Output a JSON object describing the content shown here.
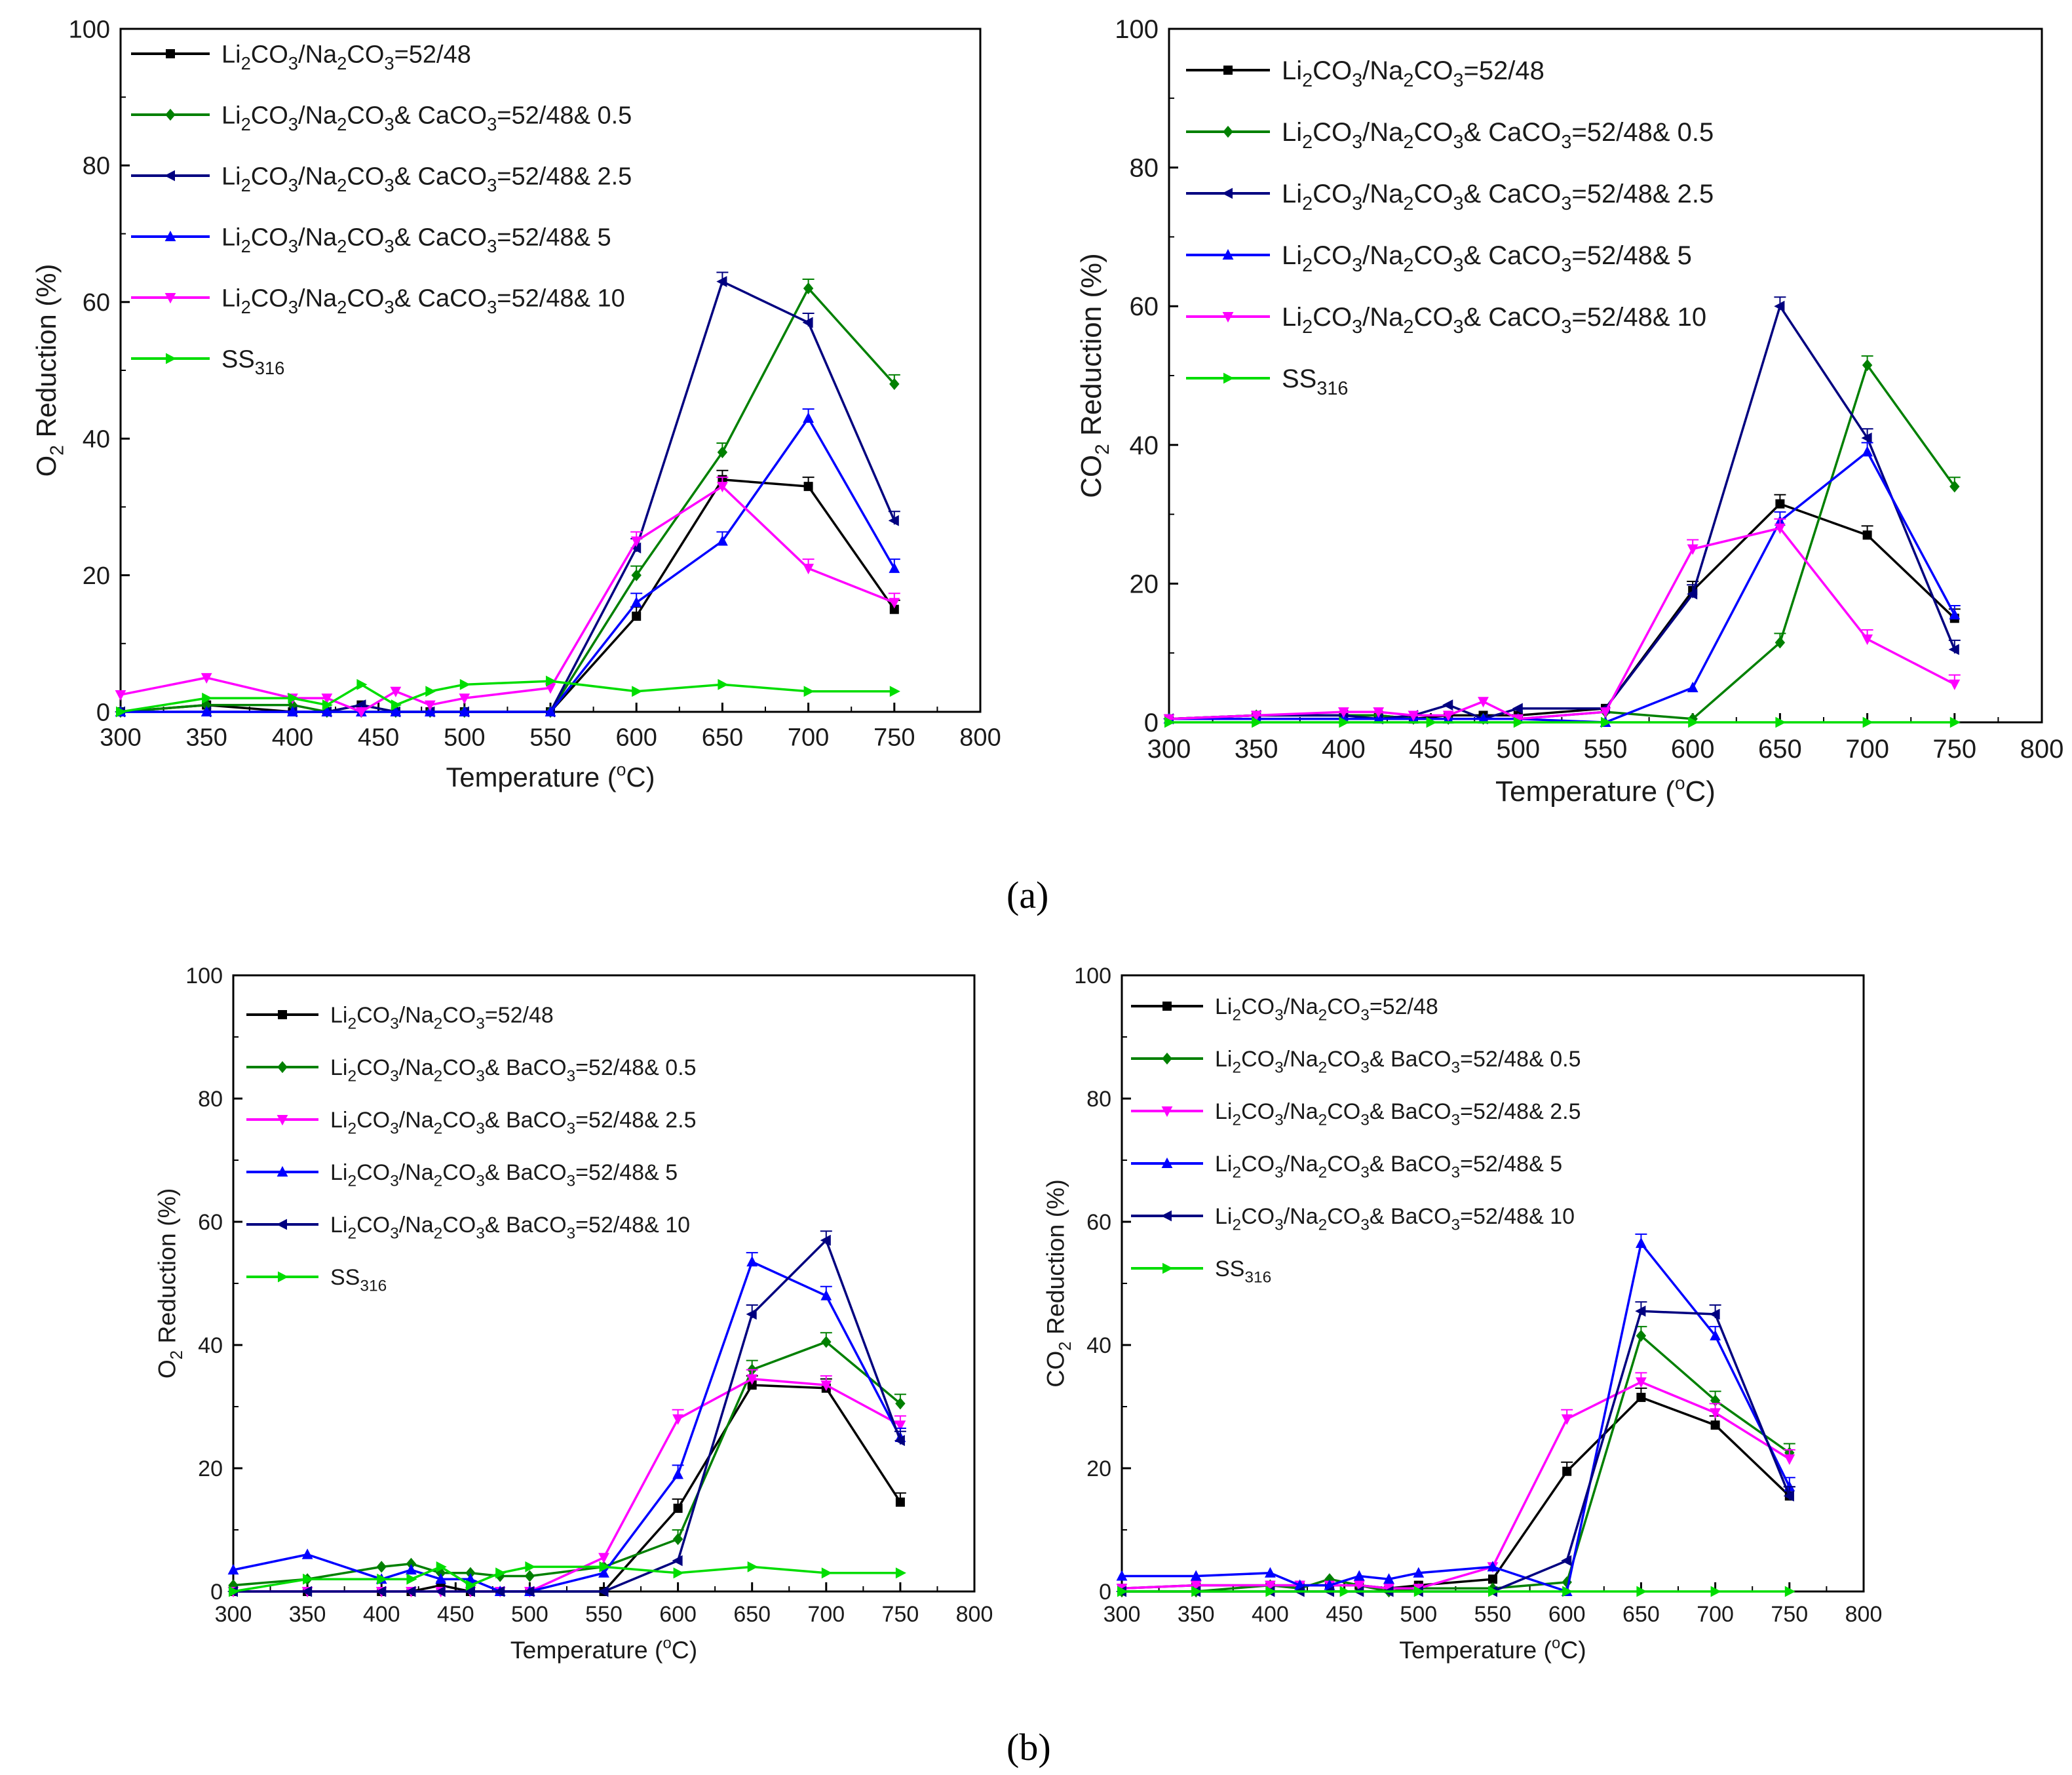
{
  "labels": {
    "panel_a": "(a)",
    "panel_b": "(b)"
  },
  "chart_data": [
    {
      "id": "a_left",
      "type": "line",
      "ylabel": "O2 Reduction (%)",
      "xlabel": "Temperature (°C)",
      "xlim": [
        300,
        800
      ],
      "ylim": [
        0,
        100
      ],
      "xticks": [
        300,
        350,
        400,
        450,
        500,
        550,
        600,
        650,
        700,
        750,
        800
      ],
      "yticks": [
        0,
        20,
        40,
        60,
        80,
        100
      ],
      "series": [
        {
          "name": "Li2CO3/Na2CO3=52/48",
          "color": "#000000",
          "marker": "square",
          "x": [
            300,
            350,
            400,
            420,
            440,
            460,
            480,
            500,
            550,
            600,
            650,
            700,
            750
          ],
          "y": [
            0,
            1,
            0,
            0,
            1,
            0,
            0,
            0,
            0,
            14,
            34,
            33,
            15
          ]
        },
        {
          "name": "Li2CO3/Na2CO3& CaCO3=52/48& 0.5",
          "color": "#008000",
          "marker": "diamond",
          "x": [
            300,
            350,
            400,
            420,
            440,
            460,
            480,
            500,
            550,
            600,
            650,
            700,
            750
          ],
          "y": [
            0,
            1,
            1,
            0,
            0,
            0,
            0,
            0,
            0,
            20,
            38,
            62,
            48
          ]
        },
        {
          "name": "Li2CO3/Na2CO3& CaCO3=52/48& 2.5",
          "color": "#000080",
          "marker": "left-triangle",
          "x": [
            300,
            350,
            400,
            420,
            440,
            460,
            480,
            500,
            550,
            600,
            650,
            700,
            750
          ],
          "y": [
            0,
            0,
            0,
            0,
            1,
            0,
            0,
            0,
            0,
            24,
            63,
            57,
            28
          ]
        },
        {
          "name": "Li2CO3/Na2CO3& CaCO3=52/48& 5",
          "color": "#0000ff",
          "marker": "up-triangle",
          "x": [
            300,
            350,
            400,
            420,
            440,
            460,
            480,
            500,
            550,
            600,
            650,
            700,
            750
          ],
          "y": [
            0,
            0,
            0,
            0,
            0,
            0,
            0,
            0,
            0,
            16,
            25,
            43,
            21
          ]
        },
        {
          "name": "Li2CO3/Na2CO3& CaCO3=52/48& 10",
          "color": "#ff00ff",
          "marker": "down-triangle",
          "x": [
            300,
            350,
            400,
            420,
            440,
            460,
            480,
            500,
            550,
            600,
            650,
            700,
            750
          ],
          "y": [
            2.5,
            5,
            2,
            2,
            0,
            3,
            1,
            2,
            3.5,
            25,
            33,
            21,
            16
          ]
        },
        {
          "name": "SS316",
          "color": "#00dd00",
          "marker": "right-triangle",
          "x": [
            300,
            350,
            400,
            420,
            440,
            460,
            480,
            500,
            550,
            600,
            650,
            700,
            750
          ],
          "y": [
            0,
            2,
            2,
            1,
            4,
            1,
            3,
            4,
            4.5,
            3,
            4,
            3,
            3
          ]
        }
      ]
    },
    {
      "id": "a_right",
      "type": "line",
      "ylabel": "CO2 Reduction (%)",
      "xlabel": "Temperature (°C)",
      "xlim": [
        300,
        800
      ],
      "ylim": [
        0,
        100
      ],
      "xticks": [
        300,
        350,
        400,
        450,
        500,
        550,
        600,
        650,
        700,
        750,
        800
      ],
      "yticks": [
        0,
        20,
        40,
        60,
        80,
        100
      ],
      "series": [
        {
          "name": "Li2CO3/Na2CO3=52/48",
          "color": "#000000",
          "marker": "square",
          "x": [
            300,
            350,
            400,
            420,
            440,
            460,
            480,
            500,
            550,
            600,
            650,
            700,
            750
          ],
          "y": [
            0.5,
            1,
            1,
            1,
            0.5,
            1,
            1,
            1,
            2,
            19,
            31.5,
            27,
            15
          ]
        },
        {
          "name": "Li2CO3/Na2CO3& CaCO3=52/48& 0.5",
          "color": "#008000",
          "marker": "diamond",
          "x": [
            300,
            350,
            400,
            420,
            440,
            460,
            480,
            500,
            550,
            600,
            650,
            700,
            750
          ],
          "y": [
            0.5,
            1,
            1,
            1,
            0.5,
            0.5,
            0.5,
            0.5,
            1.5,
            0.5,
            11.5,
            51.5,
            34
          ]
        },
        {
          "name": "Li2CO3/Na2CO3& CaCO3=52/48& 2.5",
          "color": "#000080",
          "marker": "left-triangle",
          "x": [
            300,
            350,
            400,
            420,
            440,
            460,
            480,
            500,
            550,
            600,
            650,
            700,
            750
          ],
          "y": [
            0.5,
            1,
            1,
            0.5,
            1,
            2.5,
            0.5,
            2,
            2,
            18.5,
            60,
            41,
            10.5
          ]
        },
        {
          "name": "Li2CO3/Na2CO3& CaCO3=52/48& 5",
          "color": "#0000ff",
          "marker": "up-triangle",
          "x": [
            300,
            350,
            400,
            420,
            440,
            460,
            480,
            500,
            550,
            600,
            650,
            700,
            750
          ],
          "y": [
            0.5,
            0.5,
            0.5,
            0.5,
            0.5,
            0.5,
            0.5,
            0.5,
            0,
            5,
            29,
            39,
            15.5
          ]
        },
        {
          "name": "Li2CO3/Na2CO3& CaCO3=52/48& 10",
          "color": "#ff00ff",
          "marker": "down-triangle",
          "x": [
            300,
            350,
            400,
            420,
            440,
            460,
            480,
            500,
            550,
            600,
            650,
            700,
            750
          ],
          "y": [
            0.5,
            1,
            1.5,
            1.5,
            1,
            1,
            3,
            0.5,
            1.5,
            25,
            28,
            12,
            5.5
          ]
        },
        {
          "name": "SS316",
          "color": "#00dd00",
          "marker": "right-triangle",
          "x": [
            300,
            350,
            400,
            450,
            500,
            550,
            600,
            650,
            700,
            750
          ],
          "y": [
            0,
            0,
            0,
            0,
            0,
            0,
            0,
            0,
            0,
            0
          ]
        }
      ]
    },
    {
      "id": "b_left",
      "type": "line",
      "ylabel": "O2 Reduction (%)",
      "xlabel": "Temperature (°C)",
      "xlim": [
        300,
        800
      ],
      "ylim": [
        0,
        100
      ],
      "xticks": [
        300,
        350,
        400,
        450,
        500,
        550,
        600,
        650,
        700,
        750,
        800
      ],
      "yticks": [
        0,
        20,
        40,
        60,
        80,
        100
      ],
      "series": [
        {
          "name": "Li2CO3/Na2CO3=52/48",
          "color": "#000000",
          "marker": "square",
          "x": [
            300,
            350,
            400,
            420,
            440,
            460,
            480,
            500,
            550,
            600,
            650,
            700,
            750
          ],
          "y": [
            0,
            0,
            0,
            0,
            1,
            0,
            0,
            0,
            0,
            13.5,
            33.5,
            33,
            14.5
          ]
        },
        {
          "name": "Li2CO3/Na2CO3& BaCO3=52/48& 0.5",
          "color": "#008000",
          "marker": "diamond",
          "x": [
            300,
            350,
            400,
            420,
            440,
            460,
            480,
            500,
            550,
            600,
            650,
            700,
            750
          ],
          "y": [
            1,
            2,
            4,
            4.5,
            3,
            3,
            2.5,
            2.5,
            4,
            8.5,
            36,
            40.5,
            30.5
          ]
        },
        {
          "name": "Li2CO3/Na2CO3& BaCO3=52/48& 2.5",
          "color": "#ff00ff",
          "marker": "down-triangle",
          "x": [
            300,
            350,
            400,
            420,
            440,
            460,
            480,
            500,
            550,
            600,
            650,
            700,
            750
          ],
          "y": [
            0,
            0,
            0,
            0,
            0,
            0,
            0,
            0,
            5.5,
            28,
            34.5,
            33.5,
            27
          ]
        },
        {
          "name": "Li2CO3/Na2CO3& BaCO3=52/48& 5",
          "color": "#0000ff",
          "marker": "up-triangle",
          "x": [
            300,
            350,
            400,
            420,
            440,
            460,
            480,
            500,
            550,
            600,
            650,
            700,
            750
          ],
          "y": [
            3.5,
            6,
            2,
            3.5,
            2,
            2,
            0,
            0,
            3,
            19,
            53.5,
            48,
            25
          ]
        },
        {
          "name": "Li2CO3/Na2CO3& BaCO3=52/48& 10",
          "color": "#000080",
          "marker": "left-triangle",
          "x": [
            300,
            350,
            400,
            420,
            440,
            460,
            480,
            500,
            550,
            600,
            650,
            700,
            750
          ],
          "y": [
            0,
            0,
            0,
            0,
            0,
            0,
            0,
            0,
            0,
            5,
            45,
            57,
            24.5
          ]
        },
        {
          "name": "SS316",
          "color": "#00dd00",
          "marker": "right-triangle",
          "x": [
            300,
            350,
            400,
            420,
            440,
            460,
            480,
            500,
            550,
            600,
            650,
            700,
            750
          ],
          "y": [
            0,
            2,
            2,
            2,
            4,
            1,
            3,
            4,
            4,
            3,
            4,
            3,
            3
          ]
        }
      ]
    },
    {
      "id": "b_right",
      "type": "line",
      "ylabel": "CO2 Reduction (%)",
      "xlabel": "Temperature (°C)",
      "xlim": [
        300,
        800
      ],
      "ylim": [
        0,
        100
      ],
      "xticks": [
        300,
        350,
        400,
        450,
        500,
        550,
        600,
        650,
        700,
        750,
        800
      ],
      "yticks": [
        0,
        20,
        40,
        60,
        80,
        100
      ],
      "series": [
        {
          "name": "Li2CO3/Na2CO3=52/48",
          "color": "#000000",
          "marker": "square",
          "x": [
            300,
            350,
            400,
            420,
            440,
            460,
            480,
            500,
            550,
            600,
            650,
            700,
            750
          ],
          "y": [
            0.5,
            1,
            1,
            1,
            1,
            1,
            0.5,
            1,
            2,
            19.5,
            31.5,
            27,
            15.5
          ]
        },
        {
          "name": "Li2CO3/Na2CO3& BaCO3=52/48& 0.5",
          "color": "#008000",
          "marker": "diamond",
          "x": [
            300,
            350,
            400,
            420,
            440,
            460,
            480,
            500,
            550,
            600,
            650,
            700,
            750
          ],
          "y": [
            0,
            0,
            1,
            0.5,
            2,
            1,
            0,
            0.5,
            0.5,
            1.5,
            41.5,
            31,
            22.5
          ]
        },
        {
          "name": "Li2CO3/Na2CO3& BaCO3=52/48& 2.5",
          "color": "#ff00ff",
          "marker": "down-triangle",
          "x": [
            300,
            350,
            400,
            420,
            440,
            460,
            480,
            500,
            550,
            600,
            650,
            700,
            750
          ],
          "y": [
            0.5,
            1,
            1,
            1,
            1,
            1,
            0.5,
            0.5,
            4,
            28,
            34,
            29,
            21.5
          ]
        },
        {
          "name": "Li2CO3/Na2CO3& BaCO3=52/48& 5",
          "color": "#0000ff",
          "marker": "up-triangle",
          "x": [
            300,
            350,
            400,
            420,
            440,
            460,
            480,
            500,
            550,
            600,
            650,
            700,
            750
          ],
          "y": [
            2.5,
            2.5,
            3,
            1,
            1,
            2.5,
            2,
            3,
            4,
            0,
            56.5,
            41.5,
            17
          ]
        },
        {
          "name": "Li2CO3/Na2CO3& BaCO3=52/48& 10",
          "color": "#000080",
          "marker": "left-triangle",
          "x": [
            300,
            350,
            400,
            420,
            440,
            460,
            480,
            500,
            550,
            600,
            650,
            700,
            750
          ],
          "y": [
            0,
            0,
            0,
            0,
            0,
            0,
            0,
            0,
            0,
            5,
            45.5,
            45,
            15.5
          ]
        },
        {
          "name": "SS316",
          "color": "#00dd00",
          "marker": "right-triangle",
          "x": [
            300,
            350,
            400,
            450,
            500,
            550,
            600,
            650,
            700,
            750
          ],
          "y": [
            0,
            0,
            0,
            0,
            0,
            0,
            0,
            0,
            0,
            0
          ]
        }
      ]
    }
  ]
}
